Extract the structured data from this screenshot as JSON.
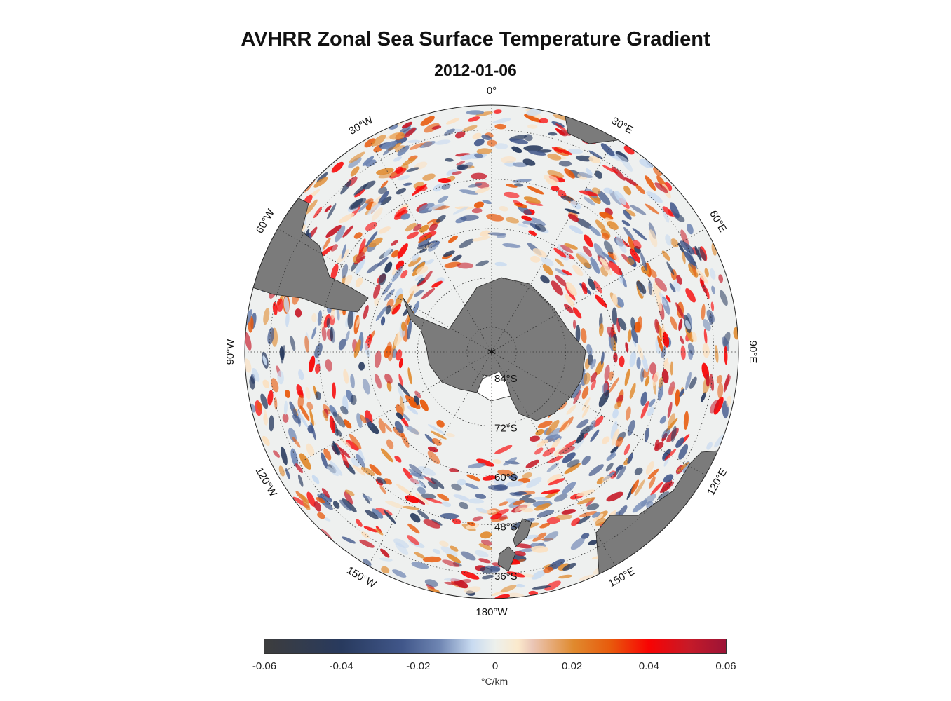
{
  "title": "AVHRR Zonal Sea Surface Temperature Gradient",
  "subtitle": "2012-01-06",
  "map": {
    "projection": "south polar stereographic",
    "boundary_lat": -30,
    "lon_labels": [
      "0°",
      "30°E",
      "60°E",
      "90°E",
      "120°E",
      "150°E",
      "180°W",
      "150°W",
      "120°W",
      "90°W",
      "60°W",
      "30°W"
    ],
    "lat_labels": [
      "84°S",
      "72°S",
      "60°S",
      "48°S",
      "36°S"
    ],
    "colors": {
      "ocean": "#eef0ef",
      "land": "#7b7b7b",
      "ice_shelf": "#ffffff"
    }
  },
  "colorbar": {
    "ticks": [
      "-0.06",
      "-0.04",
      "-0.02",
      "0",
      "0.02",
      "0.04",
      "0.06"
    ],
    "range": [
      -0.06,
      0.06
    ],
    "label": "°C/km"
  }
}
